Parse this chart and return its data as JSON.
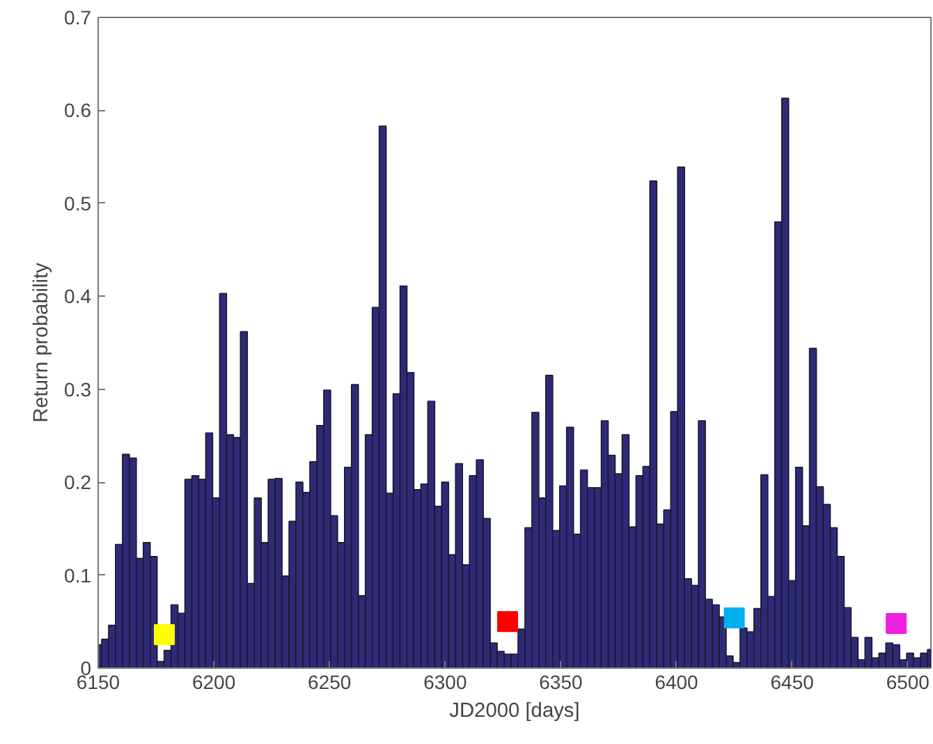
{
  "chart_data": {
    "type": "bar",
    "xlabel": "JD2000 [days]",
    "ylabel": "Return probability",
    "x": [
      6150,
      6153,
      6156,
      6159,
      6162,
      6165,
      6168,
      6171,
      6174,
      6177,
      6180,
      6183,
      6186,
      6189,
      6192,
      6195,
      6198,
      6201,
      6204,
      6207,
      6210,
      6213,
      6216,
      6219,
      6222,
      6225,
      6228,
      6231,
      6234,
      6237,
      6240,
      6243,
      6246,
      6249,
      6252,
      6255,
      6258,
      6261,
      6264,
      6267,
      6270,
      6273,
      6276,
      6279,
      6282,
      6285,
      6288,
      6291,
      6294,
      6297,
      6300,
      6303,
      6306,
      6309,
      6312,
      6315,
      6318,
      6321,
      6324,
      6327,
      6330,
      6333,
      6336,
      6339,
      6342,
      6345,
      6348,
      6351,
      6354,
      6357,
      6360,
      6363,
      6366,
      6369,
      6372,
      6375,
      6378,
      6381,
      6384,
      6387,
      6390,
      6393,
      6396,
      6399,
      6402,
      6405,
      6408,
      6411,
      6414,
      6417,
      6420,
      6423,
      6426,
      6429,
      6432,
      6435,
      6438,
      6441,
      6444,
      6447,
      6450,
      6453,
      6456,
      6459,
      6462,
      6465,
      6468,
      6471,
      6474,
      6477,
      6480,
      6483,
      6486,
      6489,
      6492,
      6495,
      6498,
      6501,
      6504,
      6507,
      6510
    ],
    "series": [
      {
        "color": "#2f2a78",
        "values": [
          0.025,
          0.031,
          0.046,
          0.133,
          0.23,
          0.226,
          0.118,
          0.135,
          0.12,
          0.007,
          0.019,
          0.068,
          0.059,
          0.203,
          0.207,
          0.203,
          0.253,
          0.183,
          0.403,
          0.251,
          0.248,
          0.362,
          0.091,
          0.183,
          0.135,
          0.203,
          0.204,
          0.099,
          0.158,
          0.2,
          0.189,
          0.222,
          0.261,
          0.299,
          0.164,
          0.135,
          0.216,
          0.305,
          0.078,
          0.251,
          0.388,
          0.583,
          0.188,
          0.295,
          0.411,
          0.318,
          0.192,
          0.198,
          0.287,
          0.174,
          0.2,
          0.122,
          0.22,
          0.111,
          0.207,
          0.224,
          0.161,
          0.027,
          0.018,
          0.015,
          0.015,
          0.042,
          0.151,
          0.275,
          0.183,
          0.315,
          0.148,
          0.196,
          0.259,
          0.144,
          0.213,
          0.194,
          0.194,
          0.266,
          0.229,
          0.209,
          0.251,
          0.152,
          0.207,
          0.217,
          0.524,
          0.155,
          0.17,
          0.276,
          0.539,
          0.096,
          0.089,
          0.266,
          0.074,
          0.068,
          0.055,
          0.013,
          0.006,
          0.043,
          0.039,
          0.064,
          0.208,
          0.077,
          0.48,
          0.613,
          0.094,
          0.216,
          0.153,
          0.344,
          0.195,
          0.176,
          0.151,
          0.12,
          0.065,
          0.033,
          0.009,
          0.033,
          0.011,
          0.016,
          0.027,
          0.025,
          0.009,
          0.016,
          0.011,
          0.016,
          0.02
        ]
      },
      {
        "type": "scatter",
        "marker": "square",
        "x": [
          6178.6,
          6327,
          6425,
          6495
        ],
        "values": [
          0.036,
          0.05,
          0.054,
          0.048
        ],
        "colors": [
          "#ffff00",
          "#ff0000",
          "#00b0f0",
          "#f020e0"
        ]
      }
    ],
    "xlim": [
      6150,
      6510
    ],
    "ylim": [
      0,
      0.7
    ],
    "xticks": [
      6150,
      6200,
      6250,
      6300,
      6350,
      6400,
      6450,
      6500
    ],
    "yticks": [
      0,
      0.1,
      0.2,
      0.3,
      0.4,
      0.5,
      0.6,
      0.7
    ],
    "grid": false
  }
}
